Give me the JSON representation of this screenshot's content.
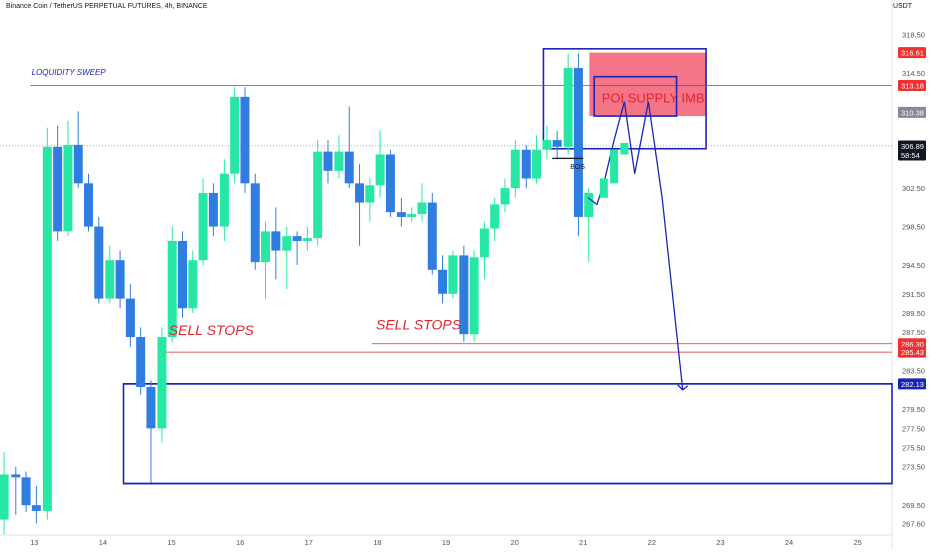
{
  "header": {
    "title": "Binance Coin / TetherUS PERPETUAL FUTURES, 4h, BINANCE",
    "currency": "USDT"
  },
  "colors": {
    "up": "#26e8a4",
    "down": "#2f7de1",
    "annotation_blue": "#1a24b8",
    "annotation_red": "#e0262d",
    "supply_fill": "#f3667a",
    "projection_fill": "#b9c0f7",
    "axis_text": "#50535e"
  },
  "chart_data": {
    "type": "candlestick",
    "x_axis": {
      "labels": [
        "13",
        "14",
        "15",
        "16",
        "17",
        "18",
        "19",
        "20",
        "21",
        "22",
        "23",
        "24",
        "25"
      ],
      "start": 12.5,
      "end": 25.5
    },
    "y_axis": {
      "range": [
        266.5,
        320.0
      ],
      "ticks": [
        318.5,
        314.5,
        302.5,
        298.5,
        294.5,
        291.5,
        289.5,
        287.5,
        283.5,
        279.5,
        277.5,
        275.5,
        273.5,
        269.5,
        267.6
      ],
      "tick_labels": [
        "318.50",
        "314.50",
        "302.50",
        "298.50",
        "294.50",
        "291.50",
        "289.50",
        "287.50",
        "283.50",
        "279.50",
        "277.50",
        "275.50",
        "273.50",
        "269.50",
        "267.60"
      ]
    },
    "candles": [
      {
        "x": 12.56,
        "o": 268.0,
        "h": 275.0,
        "l": 266.5,
        "c": 272.7
      },
      {
        "x": 12.73,
        "o": 272.7,
        "h": 273.5,
        "l": 268.5,
        "c": 272.4
      },
      {
        "x": 12.88,
        "o": 272.4,
        "h": 273.0,
        "l": 268.8,
        "c": 269.5
      },
      {
        "x": 13.03,
        "o": 269.5,
        "h": 271.5,
        "l": 267.6,
        "c": 268.9
      },
      {
        "x": 13.19,
        "o": 268.9,
        "h": 308.8,
        "l": 268.0,
        "c": 306.8
      },
      {
        "x": 13.34,
        "o": 306.8,
        "h": 309.0,
        "l": 297.0,
        "c": 298.0
      },
      {
        "x": 13.49,
        "o": 298.0,
        "h": 309.5,
        "l": 297.5,
        "c": 307.0
      },
      {
        "x": 13.64,
        "o": 307.0,
        "h": 310.5,
        "l": 302.5,
        "c": 303.0
      },
      {
        "x": 13.79,
        "o": 303.0,
        "h": 304.0,
        "l": 298.0,
        "c": 298.5
      },
      {
        "x": 13.94,
        "o": 298.5,
        "h": 299.5,
        "l": 290.5,
        "c": 291.0
      },
      {
        "x": 14.1,
        "o": 291.0,
        "h": 296.5,
        "l": 290.5,
        "c": 295.0
      },
      {
        "x": 14.25,
        "o": 295.0,
        "h": 296.0,
        "l": 290.0,
        "c": 291.0
      },
      {
        "x": 14.4,
        "o": 291.0,
        "h": 292.5,
        "l": 286.0,
        "c": 287.0
      },
      {
        "x": 14.55,
        "o": 287.0,
        "h": 288.0,
        "l": 281.0,
        "c": 281.8
      },
      {
        "x": 14.7,
        "o": 281.8,
        "h": 282.5,
        "l": 271.8,
        "c": 277.5
      },
      {
        "x": 14.86,
        "o": 277.5,
        "h": 288.0,
        "l": 276.0,
        "c": 287.0
      },
      {
        "x": 15.01,
        "o": 287.0,
        "h": 298.5,
        "l": 286.5,
        "c": 297.0
      },
      {
        "x": 15.16,
        "o": 297.0,
        "h": 298.0,
        "l": 289.0,
        "c": 290.0
      },
      {
        "x": 15.31,
        "o": 290.0,
        "h": 296.0,
        "l": 289.5,
        "c": 295.0
      },
      {
        "x": 15.46,
        "o": 295.0,
        "h": 303.5,
        "l": 294.5,
        "c": 302.0
      },
      {
        "x": 15.61,
        "o": 302.0,
        "h": 303.0,
        "l": 297.5,
        "c": 298.5
      },
      {
        "x": 15.77,
        "o": 298.5,
        "h": 305.5,
        "l": 297.0,
        "c": 304.0
      },
      {
        "x": 15.92,
        "o": 304.0,
        "h": 313.0,
        "l": 303.0,
        "c": 312.0
      },
      {
        "x": 16.07,
        "o": 312.0,
        "h": 313.0,
        "l": 302.0,
        "c": 303.0
      },
      {
        "x": 16.22,
        "o": 303.0,
        "h": 304.0,
        "l": 294.0,
        "c": 294.8
      },
      {
        "x": 16.37,
        "o": 294.8,
        "h": 299.0,
        "l": 291.0,
        "c": 298.0
      },
      {
        "x": 16.52,
        "o": 298.0,
        "h": 300.5,
        "l": 293.0,
        "c": 296.0
      },
      {
        "x": 16.68,
        "o": 296.0,
        "h": 298.5,
        "l": 292.0,
        "c": 297.5
      },
      {
        "x": 16.83,
        "o": 297.5,
        "h": 298.0,
        "l": 294.5,
        "c": 297.0
      },
      {
        "x": 16.98,
        "o": 297.0,
        "h": 298.5,
        "l": 296.0,
        "c": 297.3
      },
      {
        "x": 17.13,
        "o": 297.3,
        "h": 307.5,
        "l": 296.5,
        "c": 306.3
      },
      {
        "x": 17.28,
        "o": 306.3,
        "h": 307.5,
        "l": 303.0,
        "c": 304.3
      },
      {
        "x": 17.44,
        "o": 304.3,
        "h": 308.0,
        "l": 303.5,
        "c": 306.3
      },
      {
        "x": 17.59,
        "o": 306.3,
        "h": 311.0,
        "l": 302.5,
        "c": 303.0
      },
      {
        "x": 17.74,
        "o": 303.0,
        "h": 305.0,
        "l": 296.5,
        "c": 301.0
      },
      {
        "x": 17.89,
        "o": 301.0,
        "h": 303.5,
        "l": 299.0,
        "c": 302.8
      },
      {
        "x": 18.04,
        "o": 302.8,
        "h": 308.5,
        "l": 301.5,
        "c": 306.0
      },
      {
        "x": 18.19,
        "o": 306.0,
        "h": 306.5,
        "l": 299.5,
        "c": 300.0
      },
      {
        "x": 18.35,
        "o": 300.0,
        "h": 301.5,
        "l": 298.5,
        "c": 299.5
      },
      {
        "x": 18.5,
        "o": 299.5,
        "h": 300.5,
        "l": 299.0,
        "c": 299.8
      },
      {
        "x": 18.65,
        "o": 299.8,
        "h": 303.0,
        "l": 299.0,
        "c": 301.0
      },
      {
        "x": 18.8,
        "o": 301.0,
        "h": 302.0,
        "l": 293.5,
        "c": 294.0
      },
      {
        "x": 18.95,
        "o": 294.0,
        "h": 295.5,
        "l": 290.5,
        "c": 291.5
      },
      {
        "x": 19.1,
        "o": 291.5,
        "h": 296.0,
        "l": 291.0,
        "c": 295.5
      },
      {
        "x": 19.26,
        "o": 295.5,
        "h": 296.5,
        "l": 286.5,
        "c": 287.3
      },
      {
        "x": 19.41,
        "o": 287.3,
        "h": 296.0,
        "l": 286.5,
        "c": 295.3
      },
      {
        "x": 19.56,
        "o": 295.3,
        "h": 299.0,
        "l": 293.0,
        "c": 298.3
      },
      {
        "x": 19.71,
        "o": 298.3,
        "h": 301.5,
        "l": 297.0,
        "c": 300.8
      },
      {
        "x": 19.86,
        "o": 300.8,
        "h": 303.5,
        "l": 300.0,
        "c": 302.5
      },
      {
        "x": 20.01,
        "o": 302.5,
        "h": 307.5,
        "l": 301.5,
        "c": 306.5
      },
      {
        "x": 20.17,
        "o": 306.5,
        "h": 307.0,
        "l": 302.5,
        "c": 303.5
      },
      {
        "x": 20.32,
        "o": 303.5,
        "h": 308.0,
        "l": 303.0,
        "c": 306.5
      },
      {
        "x": 20.47,
        "o": 306.5,
        "h": 309.0,
        "l": 305.5,
        "c": 307.5
      },
      {
        "x": 20.62,
        "o": 307.5,
        "h": 308.5,
        "l": 305.5,
        "c": 306.8
      },
      {
        "x": 20.78,
        "o": 306.8,
        "h": 316.5,
        "l": 306.0,
        "c": 315.0
      },
      {
        "x": 20.93,
        "o": 315.0,
        "h": 316.5,
        "l": 297.5,
        "c": 299.5
      },
      {
        "x": 21.08,
        "o": 299.5,
        "h": 302.5,
        "l": 294.8,
        "c": 302.0
      }
    ],
    "levels": [
      {
        "name": "liquidity-sweep-line",
        "value": 313.18,
        "color": "red",
        "x_start": 12.94,
        "x_end": 25.5
      },
      {
        "name": "sell-stops-line-1",
        "value": 285.43,
        "color": "red",
        "x_start": 14.85,
        "x_end": 25.5
      },
      {
        "name": "sell-stops-line-2",
        "value": 286.3,
        "color": "red",
        "x_start": 17.92,
        "x_end": 25.5
      },
      {
        "name": "demand-top-line",
        "value": 282.13,
        "color": "blue",
        "x_start": 14.3,
        "x_end": 25.5
      },
      {
        "name": "demand-bottom-line",
        "value": 271.75,
        "color": "blue",
        "x_start": 14.3,
        "x_end": 25.5
      }
    ],
    "boxes": [
      {
        "name": "poi-outline-box",
        "x0": 20.42,
        "x1": 22.79,
        "y0": 306.6,
        "y1": 317.0
      },
      {
        "name": "demand-zone-box",
        "x0": 14.3,
        "x1": 25.5,
        "y0": 271.75,
        "y1": 282.13
      }
    ],
    "position": {
      "entry": 310.0,
      "stop": 316.61,
      "target": 282.13,
      "x0": 21.09,
      "x1": 22.79
    },
    "projection_path": [
      {
        "x": 21.07,
        "y": 301.5
      },
      {
        "x": 21.2,
        "y": 300.8
      },
      {
        "x": 21.3,
        "y": 303.0
      },
      {
        "x": 21.45,
        "y": 307.5
      },
      {
        "x": 21.6,
        "y": 311.5
      },
      {
        "x": 21.75,
        "y": 304.0
      },
      {
        "x": 21.95,
        "y": 311.5
      },
      {
        "x": 22.15,
        "y": 301.5
      },
      {
        "x": 22.45,
        "y": 281.5
      }
    ],
    "annotations": [
      {
        "name": "liquidity-sweep-label",
        "text": "LOQUIDITY SWEEP",
        "x": 12.96,
        "y": 314.3,
        "size": 8,
        "color": "blue",
        "italic": true
      },
      {
        "name": "sell-stops-label-1",
        "text": "SELL STOPS",
        "x": 14.96,
        "y": 287.2,
        "size": 14,
        "color": "red",
        "italic": true
      },
      {
        "name": "sell-stops-label-2",
        "text": "SELL STOPS",
        "x": 17.98,
        "y": 287.8,
        "size": 14,
        "color": "red",
        "italic": true
      },
      {
        "name": "bos-label",
        "text": "BOS",
        "x": 20.81,
        "y": 304.5,
        "size": 7,
        "color": "dark",
        "italic": false
      },
      {
        "name": "poi-supply-label",
        "text": "POI SUPPLY IMB",
        "x": 21.27,
        "y": 311.4,
        "size": 13,
        "color": "red",
        "italic": false
      }
    ],
    "price_tags": [
      {
        "value": 316.61,
        "label": "316.61",
        "bg": "#f2302f",
        "fg": "#ffffff"
      },
      {
        "value": 313.18,
        "label": "313.18",
        "bg": "#f2302f",
        "fg": "#ffffff"
      },
      {
        "value": 310.38,
        "label": "310.38",
        "bg": "#868993",
        "fg": "#ffffff"
      },
      {
        "value": 306.89,
        "label": "306.89",
        "sub": "58:54",
        "bg": "#131722",
        "fg": "#ffffff"
      },
      {
        "value": 286.3,
        "label": "286.30",
        "bg": "#f2302f",
        "fg": "#ffffff"
      },
      {
        "value": 285.43,
        "label": "285.43",
        "bg": "#f2302f",
        "fg": "#ffffff"
      },
      {
        "value": 282.13,
        "label": "282.13",
        "bg": "#1a24b8",
        "fg": "#ffffff"
      }
    ]
  }
}
